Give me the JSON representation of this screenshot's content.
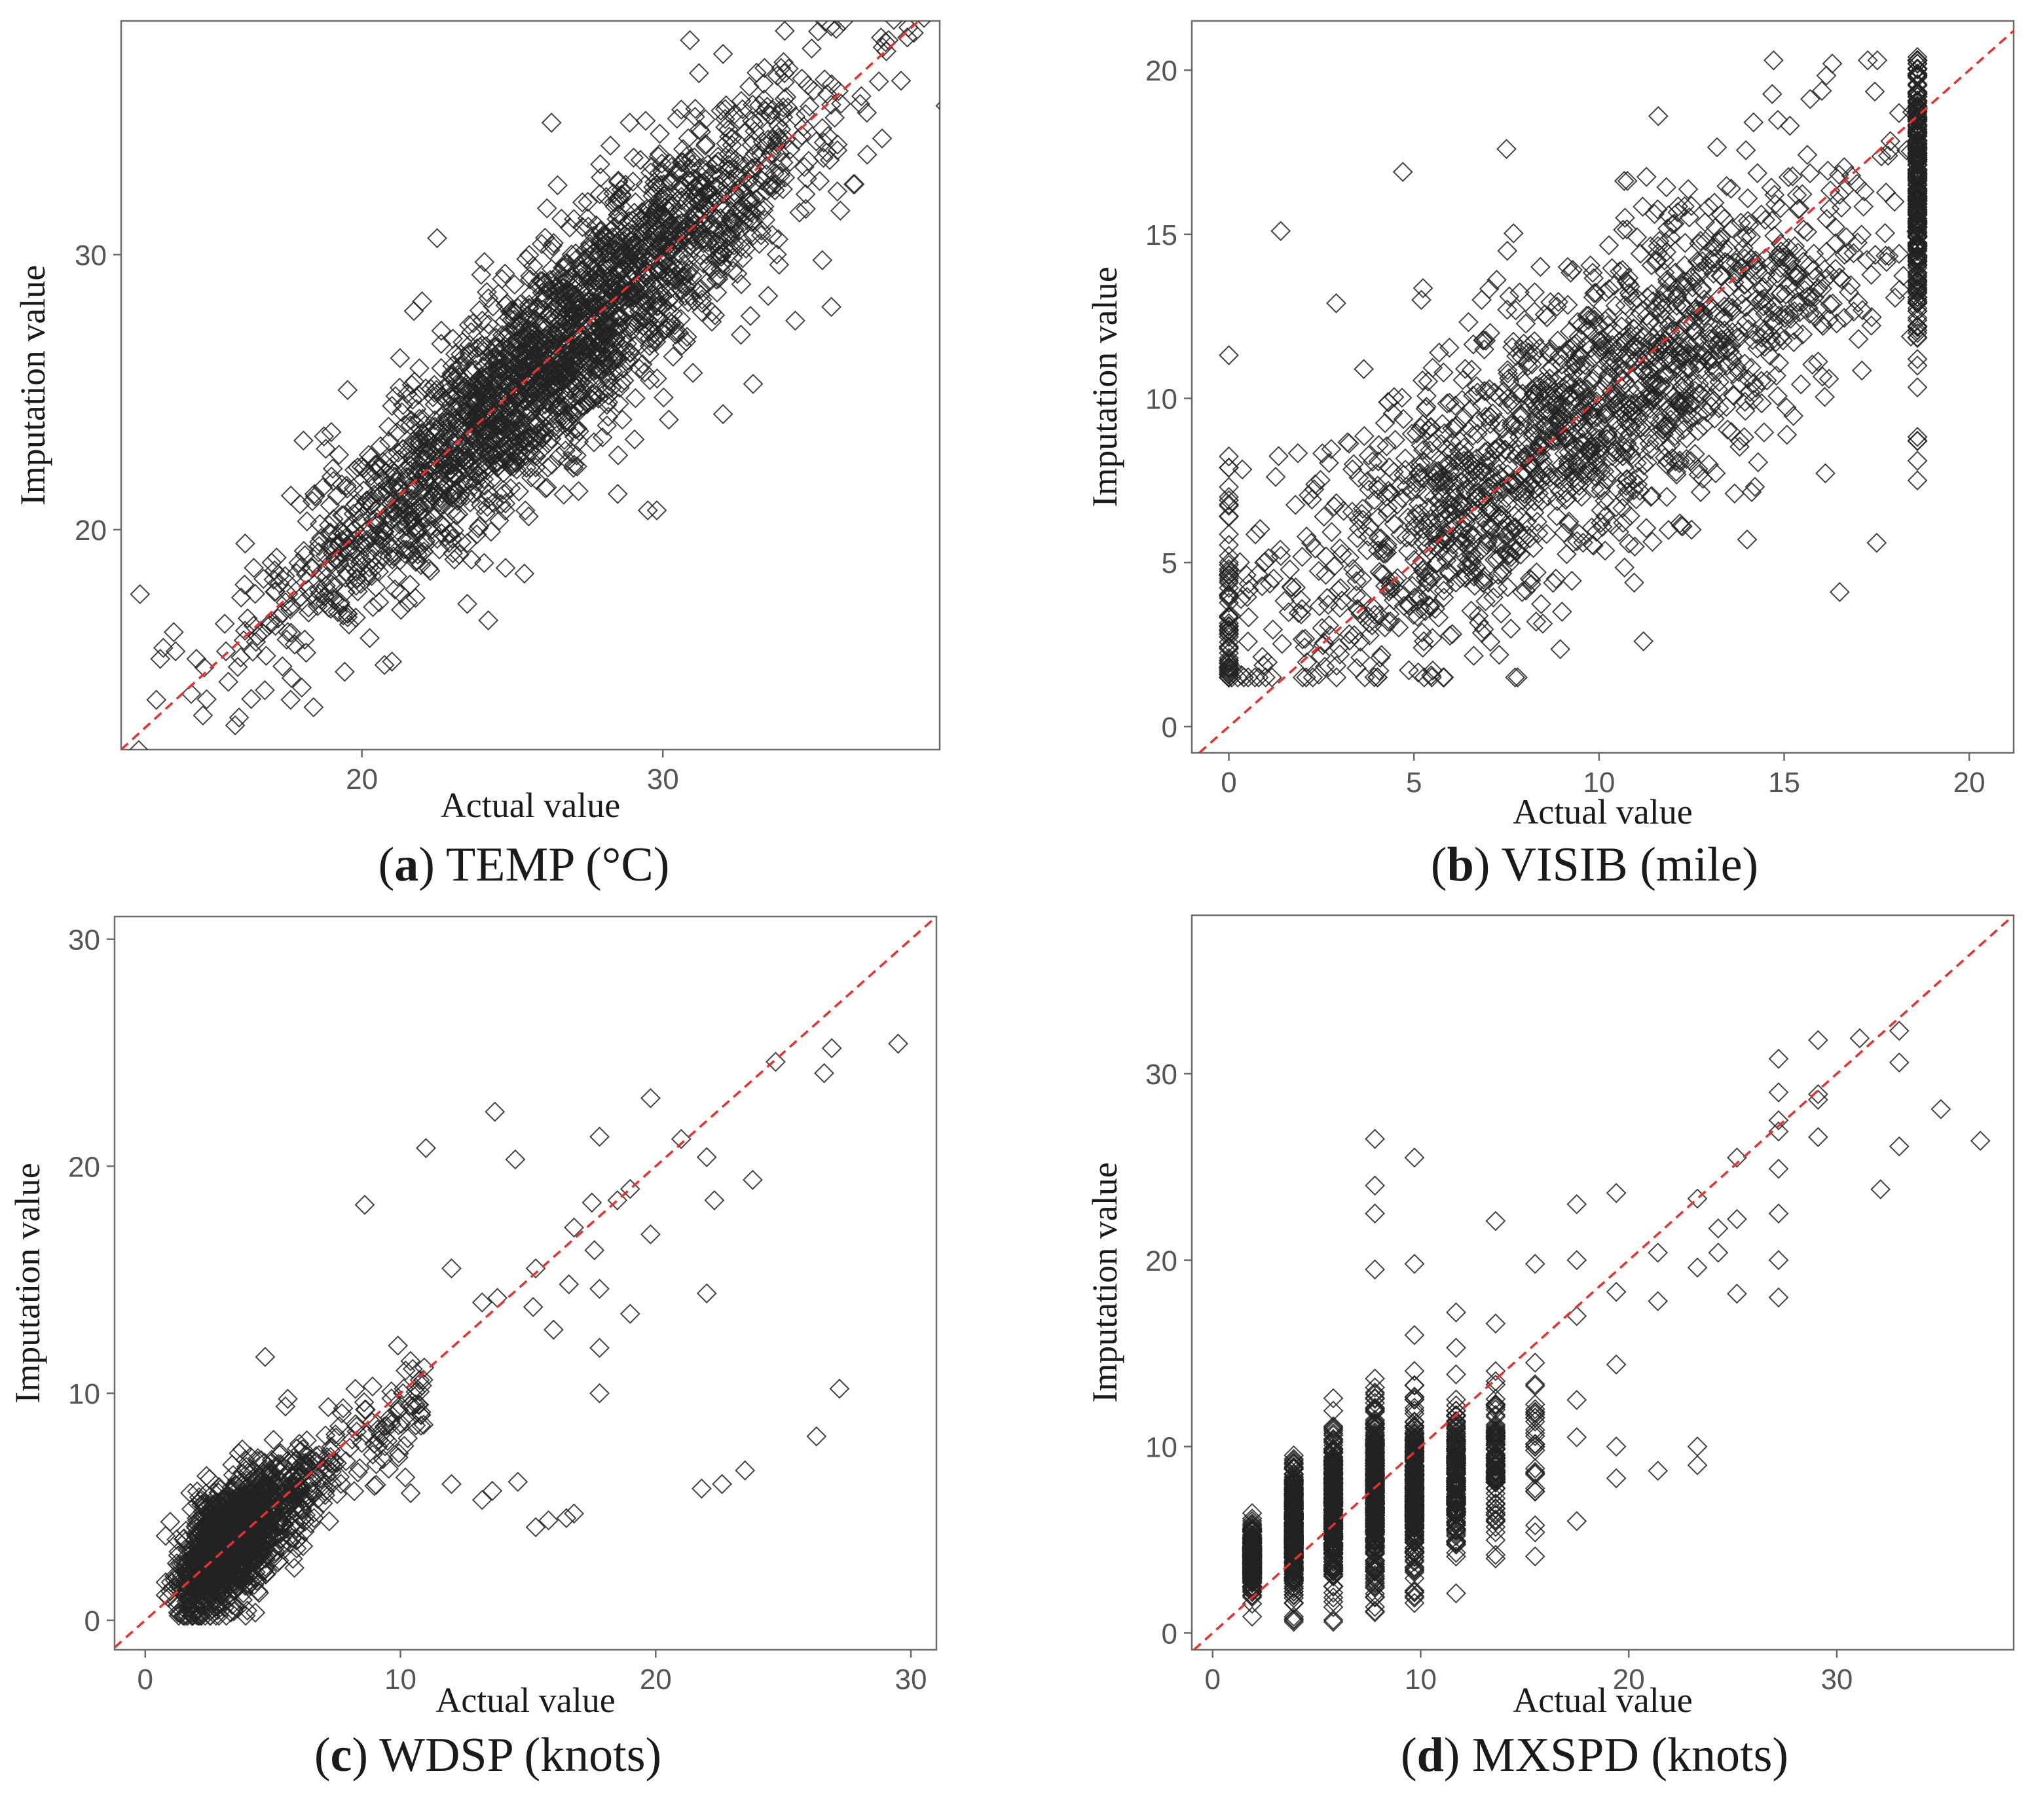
{
  "figure": {
    "description": "Four scatter plots of imputation value vs actual value with a dashed y=x reference line",
    "ref_line_color": "#e8312f",
    "marker_color": "#222222"
  },
  "chart_data": [
    {
      "id": "a",
      "type": "scatter",
      "caption_letter": "a",
      "caption_text": "TEMP (°C)",
      "xlabel": "Actual value",
      "ylabel": "Imputation value",
      "xlim": [
        12,
        39.2
      ],
      "ylim": [
        12.0,
        38.5
      ],
      "xticks": [
        20,
        30
      ],
      "yticks": [
        20,
        30
      ],
      "reference_line": "y = x",
      "marker": "diamond",
      "n_points": 2400,
      "points": [
        [
          13.3,
          15.3
        ],
        [
          13.4,
          15.7
        ],
        [
          14.5,
          15.3
        ],
        [
          16.1,
          18.0
        ],
        [
          16.4,
          16.5
        ],
        [
          17.0,
          18.8
        ],
        [
          17.5,
          16.0
        ],
        [
          18.1,
          16.0
        ],
        [
          18.6,
          20.2
        ],
        [
          19.2,
          17.0
        ],
        [
          19.8,
          16.8
        ],
        [
          20.5,
          19.8
        ],
        [
          21.0,
          15.2
        ],
        [
          21.6,
          18.0
        ],
        [
          22.5,
          30.6
        ],
        [
          23.5,
          17.3
        ],
        [
          24.2,
          16.7
        ],
        [
          25.4,
          18.4
        ],
        [
          26.1,
          21.5
        ],
        [
          27.2,
          21.4
        ],
        [
          28.5,
          21.3
        ],
        [
          29.5,
          20.7
        ],
        [
          29.8,
          20.7
        ],
        [
          30.2,
          24.0
        ],
        [
          31.0,
          25.7
        ],
        [
          32.0,
          24.2
        ],
        [
          33.0,
          25.3
        ],
        [
          30.9,
          37.8
        ],
        [
          32.0,
          37.3
        ],
        [
          31.2,
          36.6
        ],
        [
          26.3,
          34.8
        ],
        [
          28.9,
          34.8
        ],
        [
          34.0,
          35.0
        ],
        [
          35.3,
          34.6
        ],
        [
          35.8,
          32.3
        ],
        [
          35.9,
          31.6
        ],
        [
          35.3,
          29.8
        ],
        [
          35.6,
          28.1
        ],
        [
          34.4,
          27.6
        ],
        [
          33.5,
          28.5
        ],
        [
          22.0,
          28.3
        ],
        [
          24.0,
          27.6
        ],
        [
          21.0,
          24.5
        ],
        [
          21.2,
          22.8
        ]
      ]
    },
    {
      "id": "b",
      "type": "scatter",
      "caption_letter": "b",
      "caption_text": "VISIB (mile)",
      "xlabel": "Actual value",
      "ylabel": "Imputation value",
      "xlim": [
        -1,
        21.2
      ],
      "ylim": [
        -0.8,
        21.5
      ],
      "xticks": [
        0,
        5,
        10,
        15,
        20
      ],
      "yticks": [
        0,
        5,
        10,
        15,
        20
      ],
      "reference_line": "y = x",
      "marker": "diamond",
      "n_points": 2200,
      "points": [
        [
          0.0,
          4.6
        ],
        [
          0.0,
          4.8
        ],
        [
          0.0,
          7.3
        ],
        [
          0.0,
          1.8
        ],
        [
          1.4,
          15.1
        ],
        [
          2.9,
          12.9
        ],
        [
          4.7,
          16.9
        ],
        [
          5.2,
          13.0
        ],
        [
          7.5,
          17.6
        ],
        [
          8.3,
          3.2
        ],
        [
          11.2,
          2.6
        ],
        [
          11.6,
          18.6
        ],
        [
          16.3,
          20.2
        ],
        [
          16.5,
          4.1
        ],
        [
          17.5,
          5.6
        ],
        [
          18.6,
          20.4
        ],
        [
          18.6,
          19.2
        ],
        [
          18.6,
          17.5
        ],
        [
          18.6,
          16.0
        ],
        [
          18.6,
          14.2
        ],
        [
          18.6,
          12.9
        ],
        [
          18.6,
          11.0
        ],
        [
          18.6,
          8.7
        ],
        [
          18.6,
          8.1
        ],
        [
          18.6,
          7.5
        ],
        [
          14.0,
          5.7
        ],
        [
          12.5,
          6.0
        ],
        [
          9.0,
          3.5
        ],
        [
          5.5,
          2.7
        ],
        [
          3.0,
          2.2
        ]
      ]
    },
    {
      "id": "c",
      "type": "scatter",
      "caption_letter": "c",
      "caption_text": "WDSP (knots)",
      "xlabel": "Actual value",
      "ylabel": "Imputation value",
      "xlim": [
        -1.2,
        31
      ],
      "ylim": [
        -1.3,
        31
      ],
      "xticks": [
        0,
        10,
        20,
        30
      ],
      "yticks": [
        0,
        10,
        20,
        30
      ],
      "reference_line": "y = x",
      "marker": "diamond",
      "n_points": 1600,
      "points": [
        [
          29.5,
          25.4
        ],
        [
          26.9,
          25.2
        ],
        [
          26.6,
          24.1
        ],
        [
          24.7,
          24.6
        ],
        [
          23.8,
          19.4
        ],
        [
          22.0,
          20.4
        ],
        [
          22.3,
          18.5
        ],
        [
          22.0,
          14.4
        ],
        [
          21.0,
          21.2
        ],
        [
          19.8,
          23.0
        ],
        [
          19.8,
          17.0
        ],
        [
          19.0,
          19.0
        ],
        [
          18.5,
          18.5
        ],
        [
          17.8,
          21.3
        ],
        [
          17.5,
          18.4
        ],
        [
          17.8,
          14.6
        ],
        [
          17.6,
          16.3
        ],
        [
          17.8,
          12.0
        ],
        [
          17.8,
          10.0
        ],
        [
          19.0,
          13.5
        ],
        [
          16.0,
          12.8
        ],
        [
          16.8,
          17.3
        ],
        [
          16.6,
          14.8
        ],
        [
          15.3,
          15.5
        ],
        [
          15.2,
          13.8
        ],
        [
          14.5,
          20.3
        ],
        [
          13.7,
          22.4
        ],
        [
          13.2,
          14.0
        ],
        [
          13.8,
          14.2
        ],
        [
          12.0,
          15.5
        ],
        [
          11.0,
          20.8
        ],
        [
          8.6,
          18.3
        ],
        [
          4.7,
          11.6
        ],
        [
          27.2,
          10.2
        ],
        [
          26.3,
          8.1
        ],
        [
          23.5,
          6.6
        ],
        [
          22.6,
          6.0
        ],
        [
          21.8,
          5.8
        ],
        [
          16.8,
          4.7
        ],
        [
          16.5,
          4.5
        ],
        [
          15.3,
          4.1
        ],
        [
          15.8,
          4.4
        ],
        [
          14.6,
          6.1
        ],
        [
          13.6,
          5.7
        ],
        [
          13.2,
          5.3
        ],
        [
          12.0,
          6.0
        ],
        [
          10.4,
          5.6
        ],
        [
          10.7,
          9.5
        ],
        [
          10.1,
          10.0
        ],
        [
          9.9,
          12.1
        ],
        [
          10.2,
          11.0
        ]
      ]
    },
    {
      "id": "d",
      "type": "scatter",
      "caption_letter": "d",
      "caption_text": "MXSPD (knots)",
      "xlabel": "Actual value",
      "ylabel": "Imputation value",
      "xlim": [
        -1,
        38.5
      ],
      "ylim": [
        -0.9,
        38.5
      ],
      "xticks": [
        0,
        10,
        20,
        30
      ],
      "yticks": [
        0,
        10,
        20,
        30
      ],
      "reference_line": "y = x",
      "marker": "diamond",
      "n_points": 1800,
      "points": [
        [
          1.9,
          2.4
        ],
        [
          1.9,
          5.8
        ],
        [
          3.9,
          0.7
        ],
        [
          5.8,
          0.7
        ],
        [
          7.8,
          1.4
        ],
        [
          7.8,
          26.5
        ],
        [
          7.8,
          24.0
        ],
        [
          7.8,
          22.5
        ],
        [
          7.8,
          19.5
        ],
        [
          9.7,
          25.5
        ],
        [
          9.7,
          19.8
        ],
        [
          11.7,
          17.2
        ],
        [
          11.7,
          15.3
        ],
        [
          13.6,
          22.1
        ],
        [
          13.6,
          16.6
        ],
        [
          13.6,
          4.0
        ],
        [
          15.5,
          19.8
        ],
        [
          15.5,
          14.5
        ],
        [
          15.5,
          5.4
        ],
        [
          17.5,
          23.0
        ],
        [
          17.5,
          20.0
        ],
        [
          17.5,
          17.0
        ],
        [
          17.5,
          12.5
        ],
        [
          17.5,
          10.5
        ],
        [
          17.5,
          6.0
        ],
        [
          19.4,
          23.6
        ],
        [
          19.4,
          18.3
        ],
        [
          19.4,
          14.4
        ],
        [
          19.4,
          10.0
        ],
        [
          19.4,
          8.3
        ],
        [
          21.4,
          20.4
        ],
        [
          21.4,
          17.8
        ],
        [
          21.4,
          8.7
        ],
        [
          23.3,
          23.3
        ],
        [
          23.3,
          19.6
        ],
        [
          23.3,
          10.0
        ],
        [
          23.3,
          9.0
        ],
        [
          24.3,
          21.7
        ],
        [
          24.3,
          20.4
        ],
        [
          25.2,
          25.5
        ],
        [
          25.2,
          22.2
        ],
        [
          25.2,
          18.2
        ],
        [
          27.2,
          30.8
        ],
        [
          27.2,
          29.0
        ],
        [
          27.2,
          27.5
        ],
        [
          27.2,
          26.9
        ],
        [
          27.2,
          24.9
        ],
        [
          27.2,
          22.5
        ],
        [
          27.2,
          20.0
        ],
        [
          27.2,
          18.0
        ],
        [
          29.1,
          31.8
        ],
        [
          29.1,
          28.9
        ],
        [
          29.1,
          28.6
        ],
        [
          29.1,
          26.6
        ],
        [
          31.1,
          31.9
        ],
        [
          32.1,
          23.8
        ],
        [
          33.0,
          32.3
        ],
        [
          33.0,
          30.6
        ],
        [
          33.0,
          26.1
        ],
        [
          35.0,
          28.1
        ],
        [
          36.9,
          26.4
        ]
      ]
    }
  ]
}
